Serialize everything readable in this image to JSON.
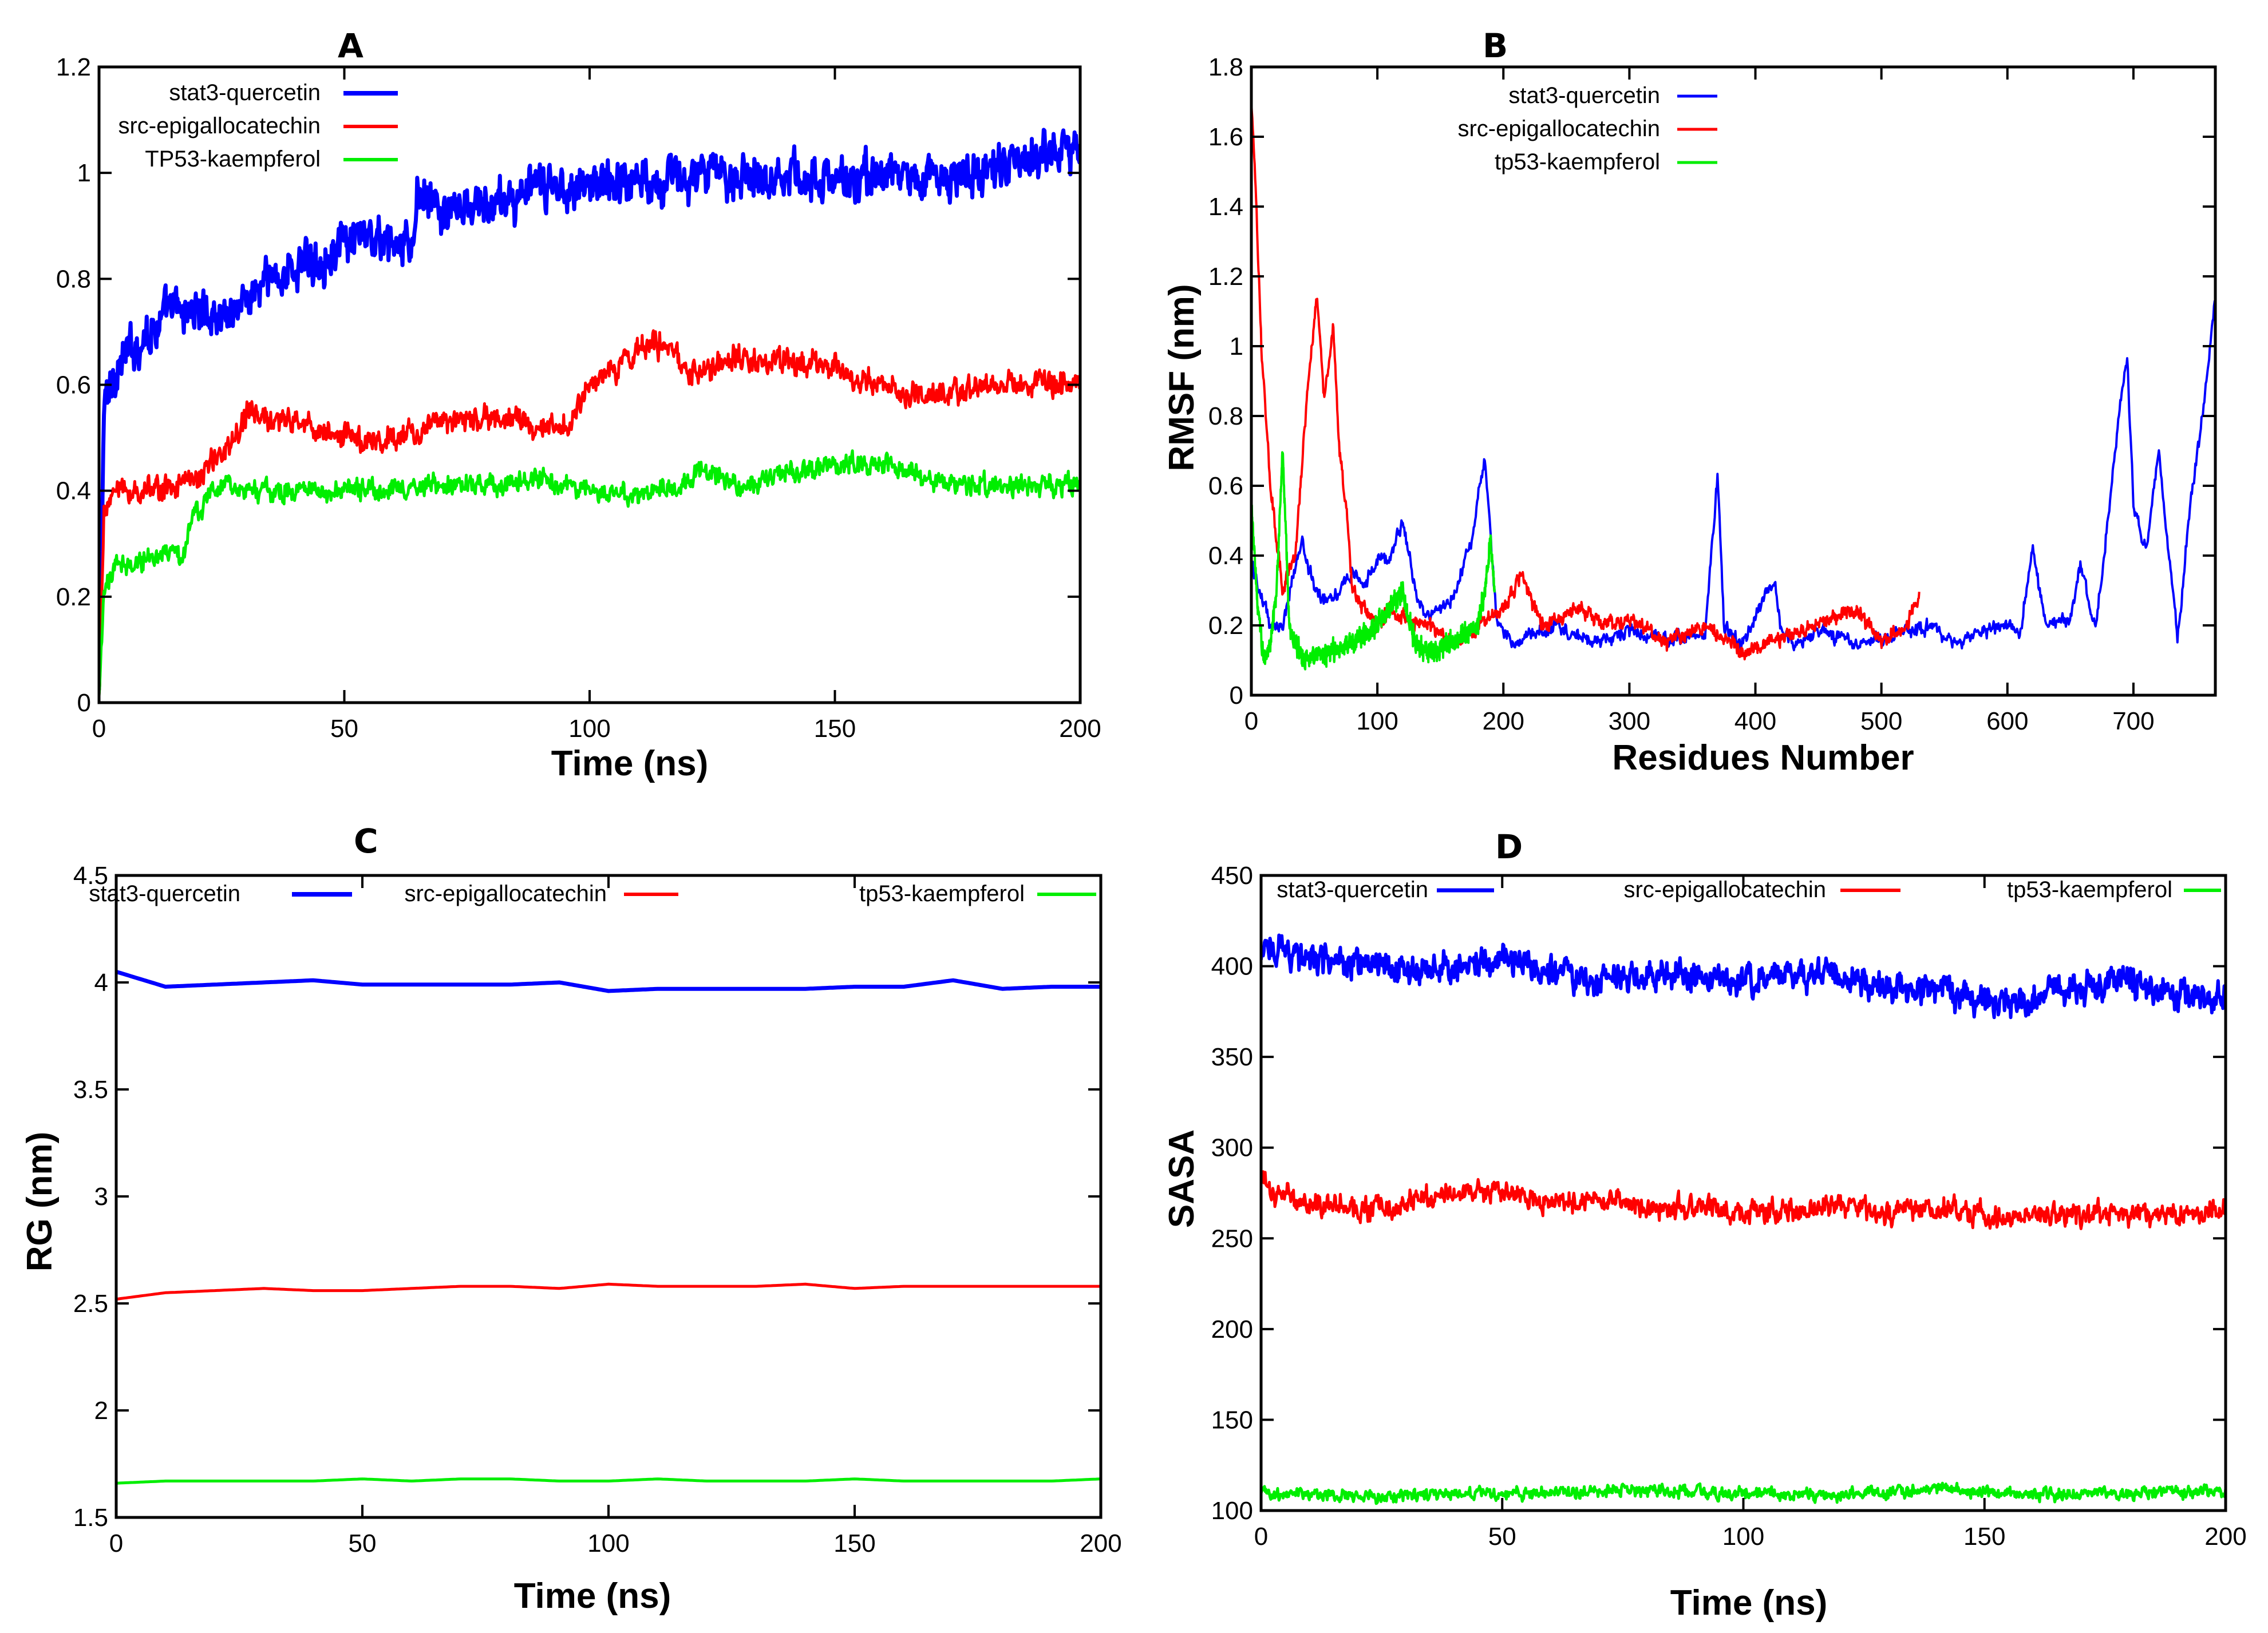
{
  "chart_data": [
    {
      "panel": "A",
      "type": "line",
      "title": "A",
      "xlabel": "Time (ns)",
      "ylabel": "",
      "xlim": [
        0,
        200
      ],
      "ylim": [
        0,
        1.2
      ],
      "xticks": [
        0,
        50,
        100,
        150,
        200
      ],
      "xtick_labels": [
        "0",
        "50",
        "100",
        "150",
        "200"
      ],
      "yticks": [
        0,
        0.2,
        0.4,
        0.6,
        0.8,
        1,
        1.2
      ],
      "ytick_labels": [
        "0",
        "0.2",
        "0.4",
        "0.6",
        "0.8",
        "1",
        "1.2"
      ],
      "legend_position": "top-left",
      "noise": true,
      "series": [
        {
          "name": "stat3-quercetin",
          "color": "#0000ff",
          "width": 7,
          "noise_amp": 0.06,
          "x": [
            0,
            1,
            3,
            6,
            10,
            15,
            20,
            25,
            30,
            35,
            40,
            45,
            50,
            55,
            60,
            64,
            65,
            70,
            80,
            90,
            100,
            110,
            120,
            130,
            140,
            150,
            160,
            170,
            180,
            190,
            195,
            200
          ],
          "y": [
            0.0,
            0.55,
            0.62,
            0.66,
            0.7,
            0.74,
            0.74,
            0.73,
            0.76,
            0.8,
            0.82,
            0.84,
            0.86,
            0.88,
            0.86,
            0.86,
            0.97,
            0.92,
            0.94,
            0.97,
            0.98,
            0.99,
            0.99,
            1.0,
            1.0,
            0.98,
            1.0,
            0.99,
            1.0,
            1.02,
            1.06,
            1.04
          ]
        },
        {
          "name": "src-epigallocatechin",
          "color": "#ff0000",
          "width": 5,
          "noise_amp": 0.035,
          "x": [
            0,
            1,
            3,
            10,
            20,
            25,
            30,
            40,
            50,
            55,
            60,
            70,
            80,
            90,
            95,
            100,
            105,
            110,
            115,
            120,
            130,
            140,
            150,
            160,
            170,
            180,
            190,
            200
          ],
          "y": [
            0.0,
            0.36,
            0.4,
            0.4,
            0.42,
            0.47,
            0.54,
            0.53,
            0.5,
            0.5,
            0.5,
            0.53,
            0.54,
            0.52,
            0.52,
            0.6,
            0.63,
            0.67,
            0.68,
            0.62,
            0.65,
            0.64,
            0.63,
            0.6,
            0.58,
            0.6,
            0.6,
            0.6
          ]
        },
        {
          "name": "TP53-kaempferol",
          "color": "#00ee00",
          "width": 5,
          "noise_amp": 0.03,
          "x": [
            0,
            1,
            3,
            10,
            17,
            20,
            25,
            30,
            50,
            70,
            90,
            100,
            110,
            125,
            130,
            150,
            160,
            170,
            180,
            200
          ],
          "y": [
            0.0,
            0.2,
            0.26,
            0.27,
            0.28,
            0.36,
            0.42,
            0.4,
            0.4,
            0.41,
            0.42,
            0.4,
            0.39,
            0.44,
            0.41,
            0.45,
            0.45,
            0.42,
            0.41,
            0.41
          ]
        }
      ]
    },
    {
      "panel": "B",
      "type": "line",
      "title": "B",
      "xlabel": "Residues Number",
      "ylabel": "RMSF (nm)",
      "xlim": [
        0,
        765
      ],
      "ylim": [
        0,
        1.8
      ],
      "xticks": [
        0,
        100,
        200,
        300,
        400,
        500,
        600,
        700
      ],
      "xtick_labels": [
        "0",
        "100",
        "200",
        "300",
        "400",
        "500",
        "600",
        "700"
      ],
      "yticks": [
        0,
        0.2,
        0.4,
        0.6,
        0.8,
        1,
        1.2,
        1.4,
        1.6,
        1.8
      ],
      "ytick_labels": [
        "0",
        "0.2",
        "0.4",
        "0.6",
        "0.8",
        "1",
        "1.2",
        "1.4",
        "1.6",
        "1.8"
      ],
      "legend_position": "top-center",
      "noise": true,
      "series": [
        {
          "name": "stat3-quercetin",
          "color": "#0000ff",
          "width": 4,
          "noise_amp": 0.03,
          "x": [
            0,
            5,
            15,
            25,
            40,
            50,
            60,
            70,
            80,
            90,
            100,
            110,
            120,
            130,
            140,
            160,
            175,
            185,
            195,
            210,
            240,
            270,
            300,
            330,
            360,
            365,
            370,
            375,
            390,
            410,
            415,
            420,
            430,
            450,
            480,
            510,
            540,
            560,
            580,
            600,
            610,
            620,
            630,
            650,
            658,
            670,
            690,
            695,
            700,
            710,
            720,
            730,
            735,
            745,
            755,
            765
          ],
          "y": [
            0.38,
            0.32,
            0.2,
            0.2,
            0.45,
            0.3,
            0.28,
            0.3,
            0.35,
            0.32,
            0.38,
            0.4,
            0.5,
            0.3,
            0.22,
            0.28,
            0.45,
            0.68,
            0.2,
            0.15,
            0.2,
            0.15,
            0.18,
            0.16,
            0.17,
            0.4,
            0.64,
            0.2,
            0.15,
            0.3,
            0.33,
            0.2,
            0.15,
            0.18,
            0.15,
            0.17,
            0.2,
            0.14,
            0.18,
            0.2,
            0.18,
            0.42,
            0.2,
            0.22,
            0.38,
            0.18,
            0.85,
            0.97,
            0.55,
            0.4,
            0.7,
            0.35,
            0.15,
            0.55,
            0.8,
            1.15
          ]
        },
        {
          "name": "src-epigallocatechin",
          "color": "#ff0000",
          "width": 4,
          "noise_amp": 0.03,
          "x": [
            0,
            3,
            8,
            15,
            25,
            35,
            45,
            52,
            58,
            65,
            70,
            75,
            80,
            90,
            100,
            110,
            120,
            140,
            160,
            180,
            200,
            215,
            230,
            260,
            280,
            300,
            330,
            360,
            390,
            410,
            430,
            460,
            480,
            500,
            520,
            530
          ],
          "y": [
            1.7,
            1.5,
            1.0,
            0.6,
            0.3,
            0.4,
            0.9,
            1.15,
            0.85,
            1.05,
            0.7,
            0.55,
            0.3,
            0.25,
            0.2,
            0.25,
            0.22,
            0.2,
            0.15,
            0.2,
            0.25,
            0.35,
            0.2,
            0.25,
            0.2,
            0.22,
            0.15,
            0.2,
            0.12,
            0.15,
            0.18,
            0.22,
            0.25,
            0.15,
            0.2,
            0.28
          ]
        },
        {
          "name": "tp53-kaempferol",
          "color": "#00ee00",
          "width": 4,
          "noise_amp": 0.04,
          "x": [
            0,
            5,
            10,
            15,
            20,
            25,
            30,
            40,
            60,
            80,
            100,
            110,
            120,
            130,
            140,
            160,
            180,
            185,
            190,
            193
          ],
          "y": [
            0.55,
            0.25,
            0.1,
            0.15,
            0.3,
            0.7,
            0.2,
            0.1,
            0.12,
            0.15,
            0.2,
            0.25,
            0.3,
            0.15,
            0.12,
            0.15,
            0.2,
            0.3,
            0.45,
            0.3
          ]
        }
      ]
    },
    {
      "panel": "C",
      "type": "line",
      "title": "C",
      "xlabel": "Time (ns)",
      "ylabel": "RG (nm)",
      "xlim": [
        0,
        200
      ],
      "ylim": [
        1.5,
        4.5
      ],
      "xticks": [
        0,
        50,
        100,
        150,
        200
      ],
      "xtick_labels": [
        "0",
        "50",
        "100",
        "150",
        "200"
      ],
      "yticks": [
        1.5,
        2,
        2.5,
        3,
        3.5,
        4,
        4.5
      ],
      "ytick_labels": [
        "1.5",
        "2",
        "2.5",
        "3",
        "3.5",
        "4",
        "4.5"
      ],
      "legend_position": "top",
      "noise": false,
      "series": [
        {
          "name": "stat3-quercetin",
          "color": "#0000ff",
          "width": 7,
          "noise_amp": 0,
          "x": [
            0,
            10,
            20,
            30,
            40,
            50,
            60,
            70,
            80,
            90,
            100,
            110,
            120,
            130,
            140,
            150,
            160,
            170,
            180,
            190,
            200
          ],
          "y": [
            4.05,
            3.98,
            3.99,
            4.0,
            4.01,
            3.99,
            3.99,
            3.99,
            3.99,
            4.0,
            3.96,
            3.97,
            3.97,
            3.97,
            3.97,
            3.98,
            3.98,
            4.01,
            3.97,
            3.98,
            3.98
          ]
        },
        {
          "name": "src-epigallocatechin",
          "color": "#ff0000",
          "width": 5,
          "noise_amp": 0,
          "x": [
            0,
            10,
            20,
            30,
            40,
            50,
            60,
            70,
            80,
            90,
            100,
            110,
            120,
            130,
            140,
            150,
            160,
            170,
            180,
            190,
            200
          ],
          "y": [
            2.52,
            2.55,
            2.56,
            2.57,
            2.56,
            2.56,
            2.57,
            2.58,
            2.58,
            2.57,
            2.59,
            2.58,
            2.58,
            2.58,
            2.59,
            2.57,
            2.58,
            2.58,
            2.58,
            2.58,
            2.58
          ]
        },
        {
          "name": "tp53-kaempferol",
          "color": "#00ee00",
          "width": 5,
          "noise_amp": 0,
          "x": [
            0,
            10,
            20,
            30,
            40,
            50,
            60,
            70,
            80,
            90,
            100,
            110,
            120,
            130,
            140,
            150,
            160,
            170,
            180,
            190,
            200
          ],
          "y": [
            1.66,
            1.67,
            1.67,
            1.67,
            1.67,
            1.68,
            1.67,
            1.68,
            1.68,
            1.67,
            1.67,
            1.68,
            1.67,
            1.67,
            1.67,
            1.68,
            1.67,
            1.67,
            1.67,
            1.67,
            1.68
          ]
        }
      ]
    },
    {
      "panel": "D",
      "type": "line",
      "title": "D",
      "xlabel": "Time (ns)",
      "ylabel": "SASA",
      "xlim": [
        0,
        200
      ],
      "ylim": [
        100,
        450
      ],
      "xticks": [
        0,
        50,
        100,
        150,
        200
      ],
      "xtick_labels": [
        "0",
        "50",
        "100",
        "150",
        "200"
      ],
      "yticks": [
        100,
        150,
        200,
        250,
        300,
        350,
        400,
        450
      ],
      "ytick_labels": [
        "100",
        "150",
        "200",
        "250",
        "300",
        "350",
        "400",
        "450"
      ],
      "legend_position": "top",
      "noise": true,
      "series": [
        {
          "name": "stat3-quercetin",
          "color": "#0000ff",
          "width": 6,
          "noise_amp": 12,
          "x": [
            0,
            2,
            10,
            20,
            30,
            40,
            50,
            60,
            70,
            80,
            90,
            100,
            110,
            120,
            130,
            140,
            150,
            160,
            170,
            180,
            190,
            200
          ],
          "y": [
            405,
            412,
            404,
            400,
            398,
            400,
            404,
            398,
            392,
            396,
            394,
            392,
            396,
            395,
            388,
            388,
            380,
            382,
            388,
            394,
            382,
            384
          ]
        },
        {
          "name": "src-epigallocatechin",
          "color": "#ff0000",
          "width": 5,
          "noise_amp": 9,
          "x": [
            0,
            2,
            10,
            20,
            30,
            40,
            50,
            60,
            70,
            80,
            90,
            100,
            110,
            120,
            130,
            140,
            150,
            160,
            170,
            180,
            190,
            200
          ],
          "y": [
            288,
            274,
            270,
            266,
            268,
            276,
            275,
            270,
            272,
            266,
            268,
            264,
            265,
            270,
            262,
            268,
            262,
            262,
            262,
            264,
            263,
            265
          ]
        },
        {
          "name": "tp53-kaempferol",
          "color": "#00ee00",
          "width": 5,
          "noise_amp": 5,
          "x": [
            0,
            20,
            40,
            60,
            80,
            100,
            120,
            140,
            160,
            180,
            200
          ],
          "y": [
            110,
            108,
            109,
            110,
            111,
            109,
            108,
            112,
            109,
            110,
            111
          ]
        }
      ]
    }
  ]
}
